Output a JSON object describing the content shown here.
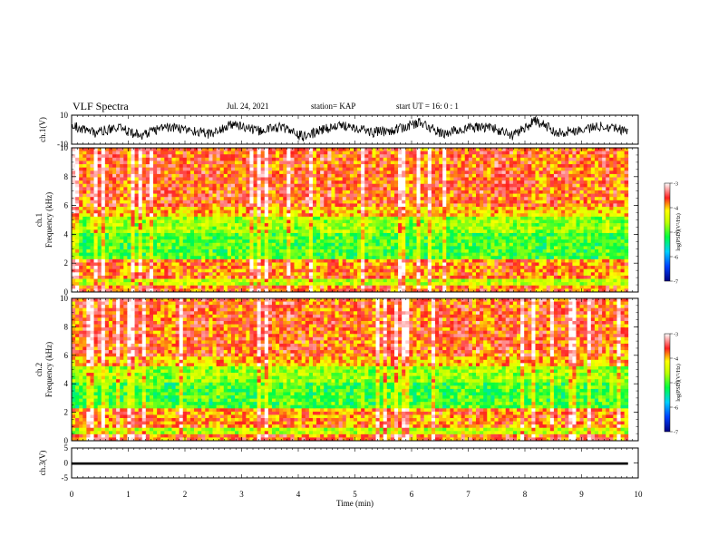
{
  "header": {
    "title": "VLF Spectra",
    "date": "Jul. 24, 2021",
    "station": "station= KAP",
    "start_ut": "start UT =  16: 0 : 1"
  },
  "chart_data": [
    {
      "type": "line",
      "panel": "ch1-waveform",
      "ylabel": "ch.1(V)",
      "ylim": [
        -10,
        10
      ],
      "yticks": [
        "10",
        "-10"
      ],
      "xlim": [
        0,
        10
      ],
      "x_end": 9.82,
      "series": [
        {
          "values_approx": [
            3,
            -2,
            1,
            -4,
            2,
            0,
            -3,
            4,
            -1,
            2,
            -5,
            1,
            3,
            -2,
            0,
            5,
            -3,
            1,
            2,
            -4,
            6,
            -2,
            0,
            3,
            -1
          ]
        }
      ]
    },
    {
      "type": "heatmap",
      "panel": "ch1-spectrogram",
      "ylabel": "ch.1 Frequency (kHz)",
      "ylim": [
        0,
        10
      ],
      "yticks": [
        "0",
        "2",
        "4",
        "6",
        "8",
        "10"
      ],
      "xlim": [
        0,
        10
      ],
      "x_end": 9.82,
      "colorbar": {
        "label": "log(PSD)(V²/Hz)",
        "range": [
          -7,
          -3
        ],
        "ticks": [
          "-3",
          "-4",
          "-5",
          "-6",
          "-7"
        ]
      }
    },
    {
      "type": "heatmap",
      "panel": "ch2-spectrogram",
      "ylabel": "ch.2 Frequency (kHz)",
      "ylim": [
        0,
        10
      ],
      "yticks": [
        "0",
        "2",
        "4",
        "6",
        "8",
        "10"
      ],
      "xlim": [
        0,
        10
      ],
      "x_end": 9.82,
      "colorbar": {
        "label": "log(PSD)(V²/Hz)",
        "range": [
          -7,
          -3
        ],
        "ticks": [
          "-3",
          "-4",
          "-5",
          "-6",
          "-7"
        ]
      }
    },
    {
      "type": "line",
      "panel": "ch3-waveform",
      "ylabel": "ch.3(V)",
      "ylim": [
        -5,
        5
      ],
      "yticks": [
        "5",
        "0",
        "-5"
      ],
      "xlim": [
        0,
        10
      ],
      "x_end": 9.82,
      "series": [
        {
          "values_approx": [
            0
          ]
        }
      ]
    }
  ],
  "xaxis": {
    "label": "Time (min)",
    "ticks": [
      "0",
      "1",
      "2",
      "3",
      "4",
      "5",
      "6",
      "7",
      "8",
      "9",
      "10"
    ]
  },
  "colors": {
    "spectrum_low": "#0000b0",
    "spectrum_mid_low": "#00c8ff",
    "spectrum_mid": "#00ff40",
    "spectrum_mid_high": "#ffff00",
    "spectrum_high": "#ff2020",
    "spectrum_top": "#ffffff"
  }
}
